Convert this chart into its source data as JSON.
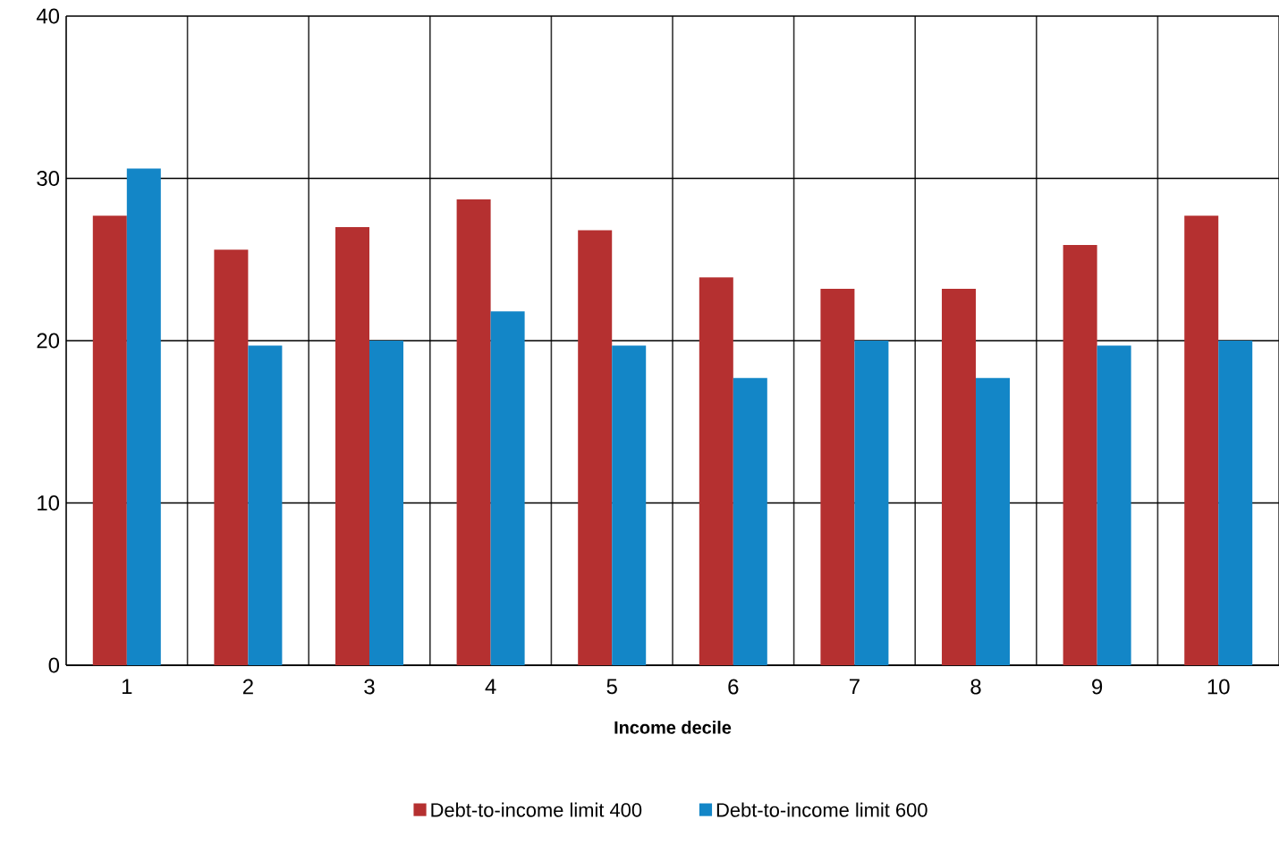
{
  "chart_data": {
    "type": "bar",
    "xlabel": "Income decile",
    "categories": [
      "1",
      "2",
      "3",
      "4",
      "5",
      "6",
      "7",
      "8",
      "9",
      "10"
    ],
    "series": [
      {
        "name": "Debt-to-income limit 400",
        "color": "#b53030",
        "values": [
          27.7,
          25.6,
          27.0,
          28.7,
          26.8,
          23.9,
          23.2,
          23.2,
          25.9,
          27.7
        ]
      },
      {
        "name": "Debt-to-income limit 600",
        "color": "#1386c7",
        "values": [
          30.6,
          19.7,
          20.0,
          21.8,
          19.7,
          17.7,
          20.0,
          17.7,
          19.7,
          20.0
        ]
      }
    ],
    "ylim": [
      0,
      40
    ],
    "yticks": [
      0,
      10,
      20,
      30,
      40
    ],
    "grid": true,
    "legend": "bottom"
  }
}
